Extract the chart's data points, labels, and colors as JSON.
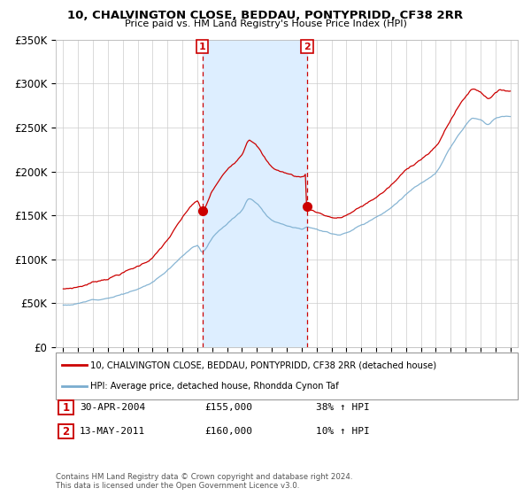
{
  "title": "10, CHALVINGTON CLOSE, BEDDAU, PONTYPRIDD, CF38 2RR",
  "subtitle": "Price paid vs. HM Land Registry's House Price Index (HPI)",
  "legend_line1": "10, CHALVINGTON CLOSE, BEDDAU, PONTYPRIDD, CF38 2RR (detached house)",
  "legend_line2": "HPI: Average price, detached house, Rhondda Cynon Taf",
  "transaction1_label": "1",
  "transaction1_date": "30-APR-2004",
  "transaction1_price": "£155,000",
  "transaction1_hpi": "38% ↑ HPI",
  "transaction2_label": "2",
  "transaction2_date": "13-MAY-2011",
  "transaction2_price": "£160,000",
  "transaction2_hpi": "10% ↑ HPI",
  "footnote": "Contains HM Land Registry data © Crown copyright and database right 2024.\nThis data is licensed under the Open Government Licence v3.0.",
  "red_color": "#cc0000",
  "blue_color": "#7aadcf",
  "shade_color": "#ddeeff",
  "ylim": [
    0,
    350000
  ],
  "yticks": [
    0,
    50000,
    100000,
    150000,
    200000,
    250000,
    300000,
    350000
  ],
  "ytick_labels": [
    "£0",
    "£50K",
    "£100K",
    "£150K",
    "£200K",
    "£250K",
    "£300K",
    "£350K"
  ],
  "xlim_min": 1994.5,
  "xlim_max": 2025.5,
  "transaction1_x": 2004.33,
  "transaction1_y": 155000,
  "transaction2_x": 2011.37,
  "transaction2_y": 160000,
  "red_keypoints": [
    [
      1995.0,
      77000
    ],
    [
      1996.0,
      76000
    ],
    [
      1997.0,
      80000
    ],
    [
      1998.0,
      84000
    ],
    [
      1999.0,
      88000
    ],
    [
      2000.0,
      92000
    ],
    [
      2001.0,
      100000
    ],
    [
      2002.0,
      113000
    ],
    [
      2003.0,
      130000
    ],
    [
      2004.33,
      155000
    ],
    [
      2005.0,
      168000
    ],
    [
      2006.0,
      185000
    ],
    [
      2007.0,
      208000
    ],
    [
      2008.0,
      240000
    ],
    [
      2008.5,
      225000
    ],
    [
      2009.0,
      210000
    ],
    [
      2009.5,
      205000
    ],
    [
      2010.0,
      200000
    ],
    [
      2010.5,
      198000
    ],
    [
      2011.37,
      160000
    ],
    [
      2012.0,
      163000
    ],
    [
      2013.0,
      165000
    ],
    [
      2014.0,
      168000
    ],
    [
      2015.0,
      175000
    ],
    [
      2016.0,
      183000
    ],
    [
      2017.0,
      193000
    ],
    [
      2018.0,
      205000
    ],
    [
      2019.0,
      215000
    ],
    [
      2020.0,
      222000
    ],
    [
      2021.0,
      250000
    ],
    [
      2022.0,
      290000
    ],
    [
      2022.5,
      305000
    ],
    [
      2023.0,
      300000
    ],
    [
      2023.5,
      285000
    ],
    [
      2024.0,
      295000
    ],
    [
      2024.5,
      300000
    ],
    [
      2025.0,
      300000
    ]
  ],
  "blue_keypoints": [
    [
      1995.0,
      48000
    ],
    [
      1996.0,
      50000
    ],
    [
      1997.0,
      54000
    ],
    [
      1998.0,
      58000
    ],
    [
      1999.0,
      63000
    ],
    [
      2000.0,
      68000
    ],
    [
      2001.0,
      76000
    ],
    [
      2002.0,
      90000
    ],
    [
      2003.0,
      107000
    ],
    [
      2004.0,
      120000
    ],
    [
      2004.33,
      112000
    ],
    [
      2005.0,
      128000
    ],
    [
      2006.0,
      145000
    ],
    [
      2007.0,
      160000
    ],
    [
      2007.5,
      173000
    ],
    [
      2008.0,
      168000
    ],
    [
      2008.5,
      158000
    ],
    [
      2009.0,
      150000
    ],
    [
      2009.5,
      147000
    ],
    [
      2010.0,
      145000
    ],
    [
      2010.5,
      143000
    ],
    [
      2011.0,
      142000
    ],
    [
      2011.37,
      145000
    ],
    [
      2012.0,
      143000
    ],
    [
      2012.5,
      140000
    ],
    [
      2013.0,
      138000
    ],
    [
      2013.5,
      137000
    ],
    [
      2014.0,
      140000
    ],
    [
      2015.0,
      148000
    ],
    [
      2016.0,
      158000
    ],
    [
      2017.0,
      170000
    ],
    [
      2018.0,
      185000
    ],
    [
      2019.0,
      198000
    ],
    [
      2020.0,
      210000
    ],
    [
      2021.0,
      238000
    ],
    [
      2022.0,
      262000
    ],
    [
      2022.5,
      270000
    ],
    [
      2023.0,
      268000
    ],
    [
      2023.5,
      262000
    ],
    [
      2024.0,
      268000
    ],
    [
      2024.5,
      270000
    ],
    [
      2025.0,
      270000
    ]
  ]
}
